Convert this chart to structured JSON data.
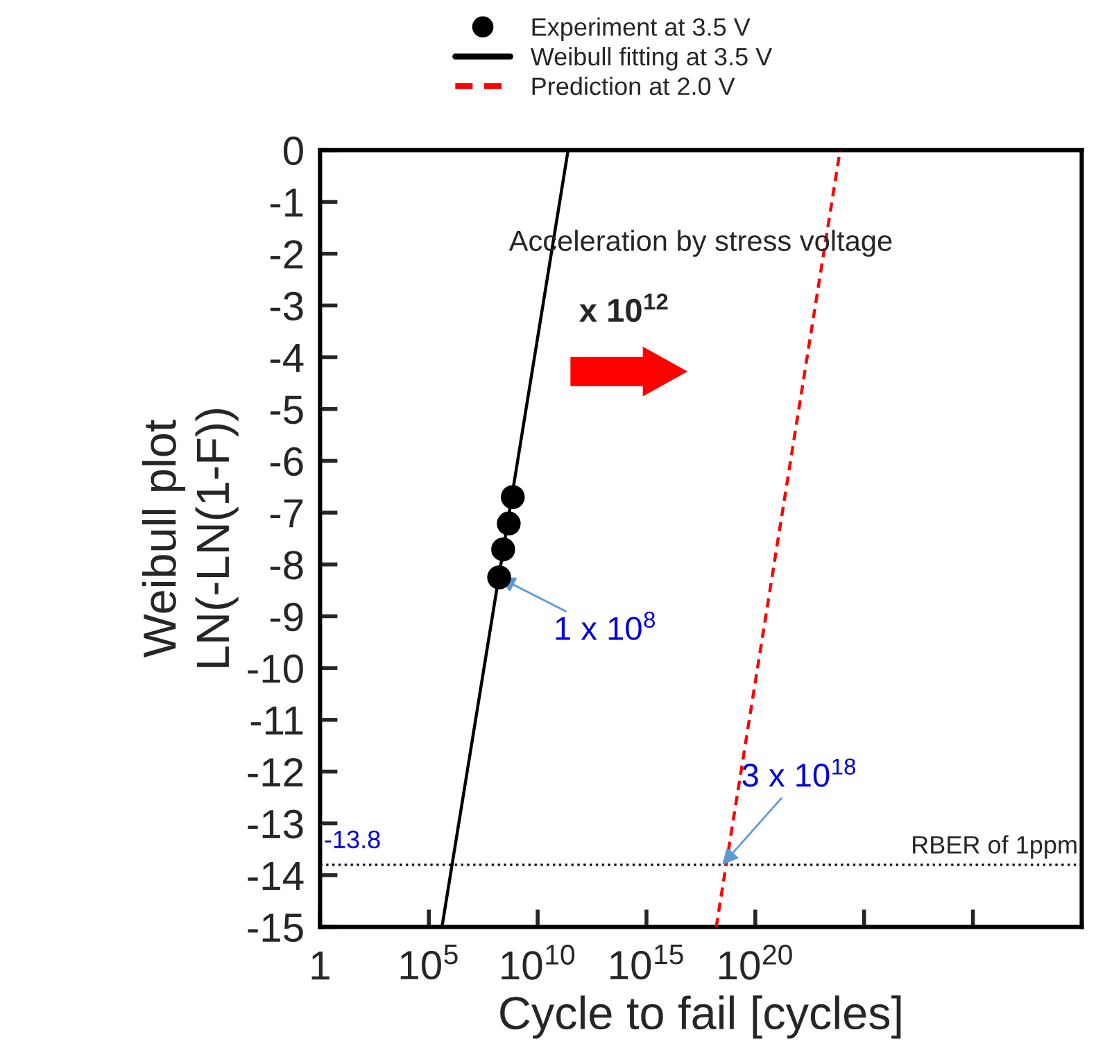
{
  "chart_data": {
    "type": "line",
    "xlabel": "Cycle to fail [cycles]",
    "ylabel": "Weibull plot\nLN(-LN(1-F))",
    "log": "x",
    "xlim": [
      1,
      1e+35
    ],
    "ylim": [
      -15,
      0
    ],
    "xticks": [
      {
        "value": 1,
        "label": "1"
      },
      {
        "value": 100000.0,
        "label": "10$^{5}$"
      },
      {
        "value": 10000000000.0,
        "label": "10$^{10}$"
      },
      {
        "value": 1000000000000000.0,
        "label": "10$^{15}$"
      },
      {
        "value": 1e+20,
        "label": "10$^{20}$"
      },
      {
        "value": 1e+25,
        "label": null
      },
      {
        "value": 1e+30,
        "label": null
      }
    ],
    "yticks": [
      0,
      -1,
      -2,
      -3,
      -4,
      -5,
      -6,
      -7,
      -8,
      -9,
      -10,
      -11,
      -12,
      -13,
      -14,
      -15
    ],
    "grid": false,
    "legend": "top",
    "series": [
      {
        "name": "Experiment at 3.5 V",
        "type": "scatter",
        "color": "#000000",
        "marker": "circle",
        "x": [
          720000000.0,
          470000000.0,
          260000000.0,
          170000000.0
        ],
        "values": [
          -6.7,
          -7.21,
          -7.71,
          -8.25
        ]
      },
      {
        "name": "Weibull fitting at 3.5 V",
        "color": "#000000",
        "line_style": "solid",
        "x": [
          400000.0,
          250000000000.0
        ],
        "values": [
          -15,
          0
        ]
      },
      {
        "name": "Prediction at 2.0 V",
        "color": "#ff0000",
        "line_style": "dashed",
        "x": [
          1.6e+18,
          7.9e+23
        ],
        "values": [
          -15,
          0
        ]
      }
    ],
    "ref_lines": [
      {
        "axis": "y",
        "value": -13.8,
        "label": "RBER of 1ppm",
        "color": "#000000",
        "line_style": "dotted"
      }
    ],
    "annotations": [
      "Acceleration by stress voltage",
      "x 10$^{12}$",
      {
        "text": "1 x 10$^{8}$",
        "x": 170000000.0,
        "y": -8.25
      },
      {
        "text": "3 x 10$^{18}$",
        "x": 3e+18,
        "y": -13.8
      },
      {
        "text": "-13.8",
        "x": 1,
        "y": -13.8
      }
    ]
  }
}
